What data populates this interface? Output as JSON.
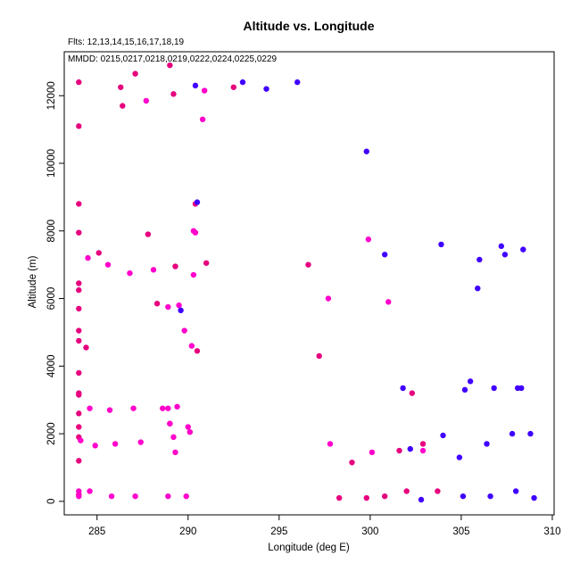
{
  "chart_data": {
    "type": "scatter",
    "title": "Altitude vs. Longitude",
    "subtitle_flights": "Flts: 12,13,14,15,16,17,18,19",
    "subtitle_dates": "MMDD: 0215,0217,0218,0219,0222,0224,0225,0229",
    "xlabel": "Longitude (deg E)",
    "ylabel": "Altitude (m)",
    "xlim": [
      283.2,
      310.1
    ],
    "ylim": [
      -400,
      13300
    ],
    "xticks": [
      285,
      290,
      295,
      300,
      305,
      310
    ],
    "yticks": [
      0,
      2000,
      4000,
      6000,
      8000,
      10000,
      12000
    ],
    "grid": false,
    "series": [
      {
        "color": "#E6007E",
        "points": [
          [
            284.0,
            12400
          ],
          [
            284.0,
            11100
          ],
          [
            284.0,
            8800
          ],
          [
            284.0,
            7950
          ],
          [
            284.0,
            6450
          ],
          [
            284.0,
            6250
          ],
          [
            284.0,
            5700
          ],
          [
            284.0,
            5050
          ],
          [
            284.0,
            4750
          ],
          [
            284.0,
            3800
          ],
          [
            284.0,
            3200
          ],
          [
            284.0,
            3150
          ],
          [
            284.0,
            2600
          ],
          [
            284.0,
            2200
          ],
          [
            284.0,
            1900
          ],
          [
            284.0,
            1200
          ],
          [
            284.0,
            200
          ],
          [
            284.4,
            4550
          ],
          [
            285.1,
            7350
          ],
          [
            286.3,
            12250
          ],
          [
            286.4,
            11700
          ],
          [
            287.1,
            12650
          ],
          [
            287.8,
            7900
          ],
          [
            288.3,
            5850
          ],
          [
            289.0,
            12900
          ],
          [
            289.2,
            12050
          ],
          [
            289.3,
            6950
          ],
          [
            289.0,
            2300
          ],
          [
            290.4,
            8800
          ],
          [
            290.5,
            4450
          ],
          [
            291.0,
            7050
          ],
          [
            292.5,
            12250
          ],
          [
            296.6,
            7000
          ],
          [
            297.2,
            4300
          ],
          [
            299.0,
            1150
          ],
          [
            302.3,
            3200
          ],
          [
            298.3,
            100
          ],
          [
            299.8,
            100
          ],
          [
            300.8,
            150
          ],
          [
            301.6,
            1500
          ],
          [
            302.0,
            300
          ],
          [
            302.9,
            1700
          ],
          [
            303.7,
            300
          ]
        ]
      },
      {
        "color": "#FF00CC",
        "points": [
          [
            284.0,
            300
          ],
          [
            284.0,
            150
          ],
          [
            284.1,
            1800
          ],
          [
            284.5,
            7200
          ],
          [
            284.6,
            2750
          ],
          [
            284.6,
            300
          ],
          [
            284.9,
            1650
          ],
          [
            285.6,
            7000
          ],
          [
            285.7,
            2700
          ],
          [
            285.8,
            150
          ],
          [
            286.0,
            1700
          ],
          [
            286.8,
            6750
          ],
          [
            287.0,
            2750
          ],
          [
            287.1,
            150
          ],
          [
            287.4,
            1750
          ],
          [
            287.7,
            11850
          ],
          [
            288.1,
            6850
          ],
          [
            288.6,
            2750
          ],
          [
            288.9,
            2750
          ],
          [
            288.9,
            150
          ],
          [
            288.9,
            5750
          ],
          [
            289.0,
            2300
          ],
          [
            289.2,
            1900
          ],
          [
            289.3,
            1450
          ],
          [
            289.4,
            2800
          ],
          [
            289.5,
            5800
          ],
          [
            289.8,
            5050
          ],
          [
            289.9,
            150
          ],
          [
            290.0,
            2200
          ],
          [
            290.1,
            2050
          ],
          [
            290.2,
            4600
          ],
          [
            290.3,
            8000
          ],
          [
            290.4,
            7950
          ],
          [
            290.3,
            6700
          ],
          [
            290.8,
            11300
          ],
          [
            290.9,
            12150
          ],
          [
            299.9,
            7750
          ],
          [
            297.7,
            6000
          ],
          [
            301.0,
            5900
          ],
          [
            297.8,
            1700
          ],
          [
            300.1,
            1450
          ],
          [
            302.9,
            1500
          ]
        ]
      },
      {
        "color": "#4000FF",
        "points": [
          [
            290.4,
            12300
          ],
          [
            293.0,
            12400
          ],
          [
            294.3,
            12200
          ],
          [
            296.0,
            12400
          ],
          [
            290.5,
            8850
          ],
          [
            289.6,
            5650
          ],
          [
            299.8,
            10350
          ],
          [
            300.8,
            7300
          ],
          [
            301.8,
            3350
          ],
          [
            302.2,
            1550
          ],
          [
            302.8,
            50
          ],
          [
            303.9,
            7600
          ],
          [
            304.0,
            1950
          ],
          [
            304.9,
            1300
          ],
          [
            305.2,
            3300
          ],
          [
            305.5,
            3550
          ],
          [
            305.1,
            150
          ],
          [
            305.9,
            6300
          ],
          [
            306.0,
            7150
          ],
          [
            306.4,
            1700
          ],
          [
            306.6,
            150
          ],
          [
            306.8,
            3350
          ],
          [
            307.2,
            7550
          ],
          [
            307.4,
            7300
          ],
          [
            307.8,
            2000
          ],
          [
            308.0,
            300
          ],
          [
            308.1,
            3350
          ],
          [
            308.3,
            3350
          ],
          [
            308.4,
            7450
          ],
          [
            308.8,
            2000
          ],
          [
            309.0,
            100
          ]
        ]
      }
    ]
  }
}
